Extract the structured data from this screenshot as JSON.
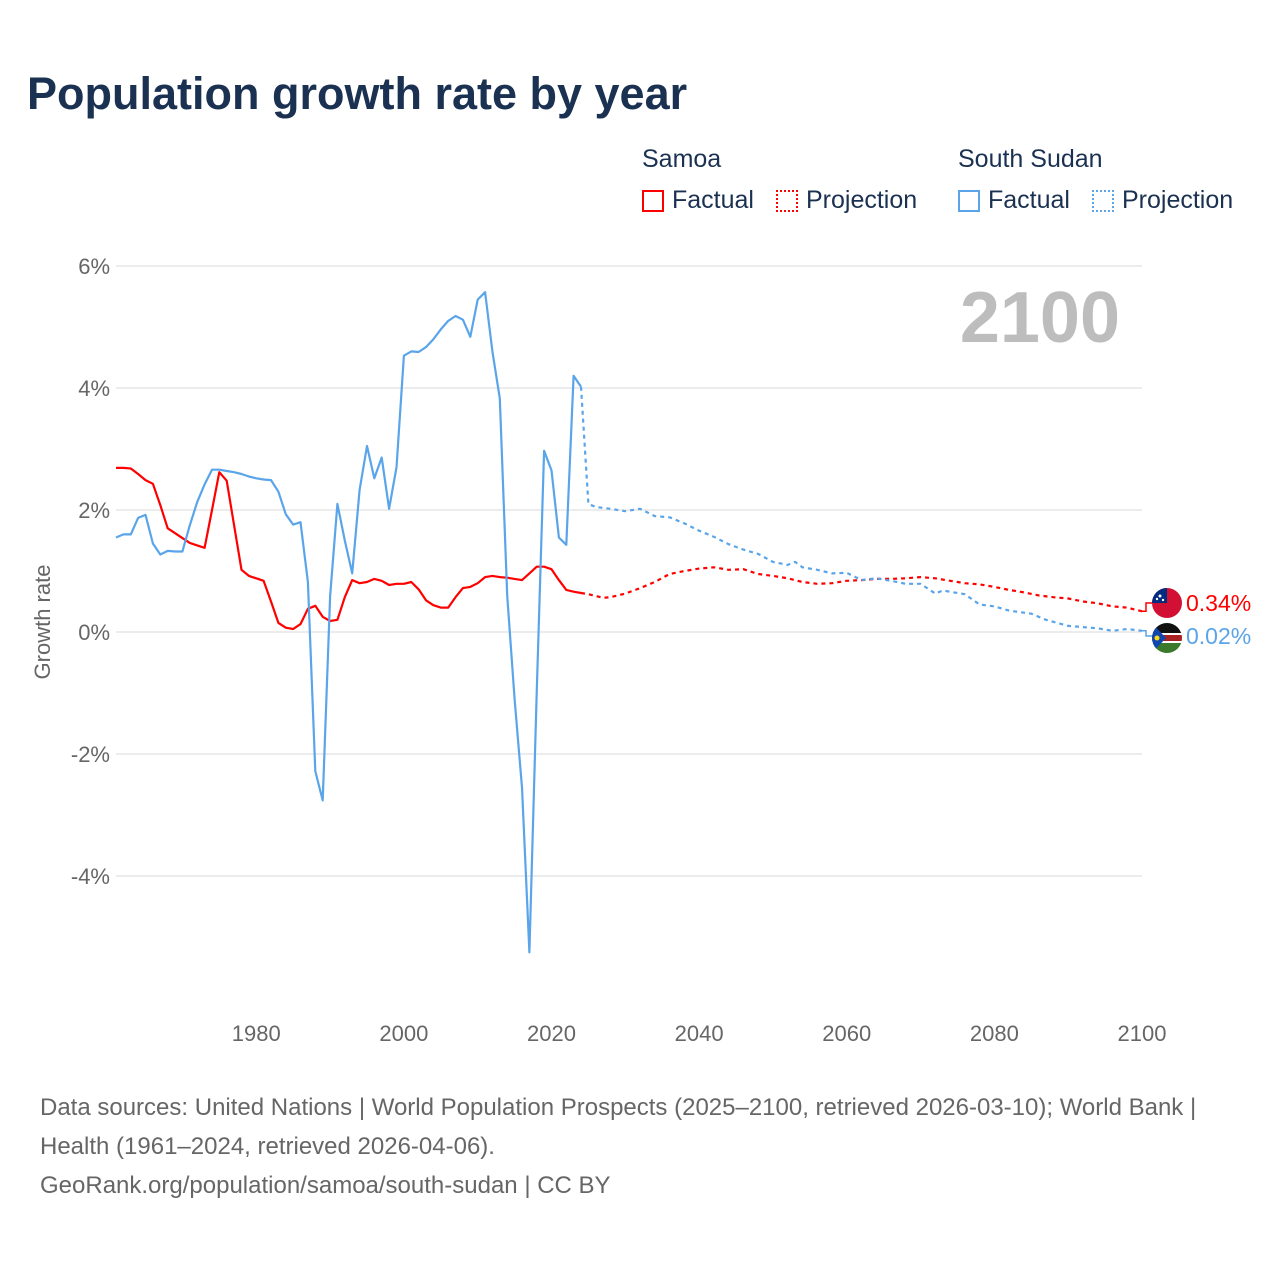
{
  "title": "Population growth rate by year",
  "legend": {
    "groups": [
      {
        "name": "Samoa",
        "color": "#ff0000",
        "factual": "Factual",
        "projection": "Projection"
      },
      {
        "name": "South Sudan",
        "color": "#5aa5ea",
        "factual": "Factual",
        "projection": "Projection"
      }
    ]
  },
  "year_label": "2100",
  "footer": {
    "line1": "Data sources: United Nations | World Population Prospects (2025–2100, retrieved 2026-03-10); World Bank | Health (1961–2024, retrieved 2026-04-06).",
    "line2": "GeoRank.org/population/samoa/south-sudan | CC BY"
  },
  "chart_data": {
    "type": "line",
    "title": "Population growth rate by year",
    "ylabel": "Growth rate",
    "xlabel": "",
    "xlim": [
      1961,
      2100
    ],
    "ylim": [
      -6,
      6.5
    ],
    "xticks": [
      1980,
      2000,
      2020,
      2040,
      2060,
      2080,
      2100
    ],
    "yticks": [
      -4,
      -2,
      0,
      2,
      4,
      6
    ],
    "ytick_labels": [
      "-4%",
      "-2%",
      "0%",
      "2%",
      "4%",
      "6%"
    ],
    "end_labels": {
      "Samoa": "0.34%",
      "South Sudan": "0.02%"
    },
    "series": [
      {
        "name": "Samoa",
        "kind": "factual",
        "color": "#ff0000",
        "x": [
          1961,
          1962,
          1963,
          1964,
          1965,
          1966,
          1967,
          1968,
          1969,
          1970,
          1971,
          1972,
          1973,
          1974,
          1975,
          1976,
          1977,
          1978,
          1979,
          1980,
          1981,
          1982,
          1983,
          1984,
          1985,
          1986,
          1987,
          1988,
          1989,
          1990,
          1991,
          1992,
          1993,
          1994,
          1995,
          1996,
          1997,
          1998,
          1999,
          2000,
          2001,
          2002,
          2003,
          2004,
          2005,
          2006,
          2007,
          2008,
          2009,
          2010,
          2011,
          2012,
          2013,
          2014,
          2015,
          2016,
          2017,
          2018,
          2019,
          2020,
          2021,
          2022,
          2023,
          2024
        ],
        "y": [
          2.69,
          2.69,
          2.68,
          2.59,
          2.49,
          2.43,
          2.08,
          1.7,
          1.62,
          1.54,
          1.46,
          1.42,
          1.38,
          2.0,
          2.62,
          2.48,
          1.75,
          1.02,
          0.92,
          0.88,
          0.84,
          0.5,
          0.15,
          0.07,
          0.05,
          0.13,
          0.38,
          0.43,
          0.25,
          0.18,
          0.2,
          0.57,
          0.85,
          0.8,
          0.82,
          0.87,
          0.84,
          0.77,
          0.79,
          0.79,
          0.82,
          0.7,
          0.52,
          0.44,
          0.4,
          0.4,
          0.57,
          0.72,
          0.74,
          0.8,
          0.9,
          0.92,
          0.9,
          0.89,
          0.87,
          0.85,
          0.96,
          1.07,
          1.07,
          1.03,
          0.85,
          0.69,
          0.66,
          0.64
        ]
      },
      {
        "name": "Samoa",
        "kind": "projection",
        "color": "#ff0000",
        "x": [
          2024,
          2025,
          2027,
          2028,
          2030,
          2032,
          2034,
          2036,
          2038,
          2040,
          2042,
          2044,
          2046,
          2048,
          2050,
          2052,
          2054,
          2056,
          2058,
          2060,
          2062,
          2064,
          2066,
          2068,
          2070,
          2072,
          2074,
          2076,
          2078,
          2080,
          2082,
          2084,
          2086,
          2088,
          2090,
          2092,
          2094,
          2096,
          2098,
          2100
        ],
        "y": [
          0.64,
          0.62,
          0.56,
          0.57,
          0.63,
          0.72,
          0.82,
          0.95,
          1.0,
          1.04,
          1.06,
          1.02,
          1.03,
          0.95,
          0.92,
          0.88,
          0.82,
          0.79,
          0.8,
          0.84,
          0.85,
          0.87,
          0.87,
          0.88,
          0.9,
          0.88,
          0.84,
          0.8,
          0.78,
          0.74,
          0.69,
          0.65,
          0.6,
          0.57,
          0.55,
          0.5,
          0.47,
          0.42,
          0.4,
          0.34
        ]
      },
      {
        "name": "South Sudan",
        "kind": "factual",
        "color": "#5aa5ea",
        "x": [
          1961,
          1962,
          1963,
          1964,
          1965,
          1966,
          1967,
          1968,
          1969,
          1970,
          1971,
          1972,
          1973,
          1974,
          1975,
          1976,
          1977,
          1978,
          1979,
          1980,
          1981,
          1982,
          1983,
          1984,
          1985,
          1986,
          1987,
          1988,
          1989,
          1990,
          1991,
          1992,
          1993,
          1994,
          1995,
          1996,
          1997,
          1998,
          1999,
          2000,
          2001,
          2002,
          2003,
          2004,
          2005,
          2006,
          2007,
          2008,
          2009,
          2010,
          2011,
          2012,
          2013,
          2014,
          2015,
          2016,
          2017,
          2018,
          2019,
          2020,
          2021,
          2022,
          2023,
          2024
        ],
        "y": [
          1.55,
          1.6,
          1.6,
          1.87,
          1.92,
          1.45,
          1.27,
          1.33,
          1.32,
          1.32,
          1.75,
          2.13,
          2.42,
          2.66,
          2.66,
          2.64,
          2.62,
          2.59,
          2.55,
          2.52,
          2.5,
          2.49,
          2.3,
          1.93,
          1.76,
          1.8,
          0.82,
          -2.28,
          -2.76,
          0.58,
          2.1,
          1.5,
          0.96,
          2.33,
          3.05,
          2.52,
          2.86,
          2.02,
          2.7,
          4.53,
          4.6,
          4.59,
          4.67,
          4.8,
          4.96,
          5.1,
          5.18,
          5.12,
          4.84,
          5.45,
          5.57,
          4.6,
          3.83,
          0.6,
          -1.1,
          -2.55,
          -5.25,
          -1.0,
          2.97,
          2.65,
          1.55,
          1.43,
          4.2,
          4.02
        ]
      },
      {
        "name": "South Sudan",
        "kind": "projection",
        "color": "#5aa5ea",
        "x": [
          2024,
          2025,
          2026,
          2028,
          2030,
          2032,
          2034,
          2036,
          2038,
          2040,
          2042,
          2044,
          2046,
          2048,
          2050,
          2052,
          2053,
          2054,
          2056,
          2058,
          2060,
          2062,
          2064,
          2066,
          2068,
          2070,
          2072,
          2073,
          2076,
          2078,
          2080,
          2082,
          2085,
          2087,
          2090,
          2094,
          2096,
          2098,
          2100
        ],
        "y": [
          4.02,
          2.1,
          2.05,
          2.02,
          1.98,
          2.02,
          1.9,
          1.88,
          1.78,
          1.66,
          1.56,
          1.44,
          1.35,
          1.28,
          1.15,
          1.1,
          1.15,
          1.06,
          1.02,
          0.96,
          0.97,
          0.85,
          0.88,
          0.84,
          0.79,
          0.79,
          0.63,
          0.68,
          0.62,
          0.45,
          0.42,
          0.35,
          0.3,
          0.2,
          0.1,
          0.06,
          0.02,
          0.05,
          0.02
        ]
      }
    ]
  }
}
